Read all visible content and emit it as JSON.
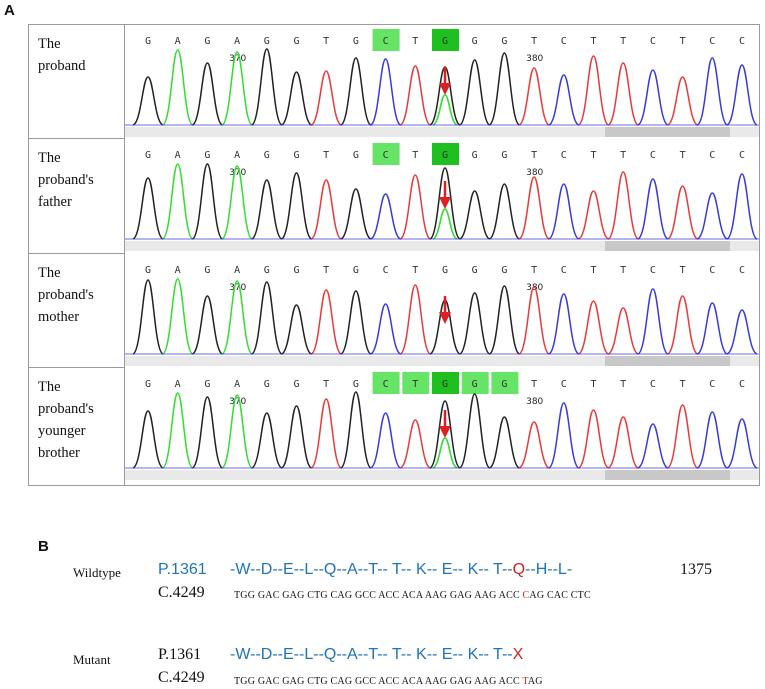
{
  "panel_a": {
    "label": "A",
    "rows": [
      {
        "label": "The\nproband",
        "bases": [
          "G",
          "A",
          "G",
          "A",
          "G",
          "G",
          "T",
          "G",
          "C",
          "T",
          "G",
          "G",
          "G",
          "T",
          "C",
          "T",
          "T",
          "C",
          "T",
          "C",
          "C"
        ],
        "highlight": [
          8,
          10
        ],
        "dark_highlight": [
          10
        ],
        "marker_370": "370",
        "marker_380": "380",
        "arrow_pos": 10,
        "het_green": true
      },
      {
        "label": "The\nproband's\nfather",
        "bases": [
          "G",
          "A",
          "G",
          "A",
          "G",
          "G",
          "T",
          "G",
          "C",
          "T",
          "G",
          "G",
          "G",
          "T",
          "C",
          "T",
          "T",
          "C",
          "T",
          "C",
          "C"
        ],
        "highlight": [
          8,
          10
        ],
        "dark_highlight": [
          10
        ],
        "marker_370": "370",
        "marker_380": "380",
        "arrow_pos": 10,
        "het_green": true
      },
      {
        "label": "The\nproband's\nmother",
        "bases": [
          "G",
          "A",
          "G",
          "A",
          "G",
          "G",
          "T",
          "G",
          "C",
          "T",
          "G",
          "G",
          "G",
          "T",
          "C",
          "T",
          "T",
          "C",
          "T",
          "C",
          "C"
        ],
        "highlight": [],
        "dark_highlight": [],
        "marker_370": "370",
        "marker_380": "380",
        "arrow_pos": 10,
        "het_green": false
      },
      {
        "label": "The\nproband's\nyounger\nbrother",
        "bases": [
          "G",
          "A",
          "G",
          "A",
          "G",
          "G",
          "T",
          "G",
          "C",
          "T",
          "G",
          "G",
          "G",
          "T",
          "C",
          "T",
          "T",
          "C",
          "T",
          "C",
          "C"
        ],
        "highlight": [
          8,
          9,
          10,
          11,
          12
        ],
        "dark_highlight": [
          10
        ],
        "marker_370": "370",
        "marker_380": "380",
        "arrow_pos": 10,
        "het_green": true
      }
    ],
    "colors": {
      "A": "#33dd33",
      "G": "#222222",
      "C": "#3a3ad8",
      "T": "#e83a3a",
      "highlight": "#66e466",
      "dark_highlight": "#1fbf1f",
      "arrow": "#e02020"
    }
  },
  "panel_b": {
    "label": "B",
    "wildtype": {
      "label": "Wildtype",
      "protein_start": "P.1361",
      "aa_normal": "-W--D--E--L--Q--A--T-- T-- K-- E-- K-- T--",
      "aa_mut": "Q",
      "aa_tail": "--H--L-",
      "protein_end": "1375",
      "cdna_start": "C.4249",
      "codons_before": "TGG GAC GAG CTG CAG GCC ACC ACA AAG GAG AAG ACC ",
      "codon_mut_base": "C",
      "codons_after": "AG CAC CTC"
    },
    "mutant": {
      "label": "Mutant",
      "protein_start": "P.1361",
      "aa_normal": "-W--D--E--L--Q--A--T-- T-- K-- E-- K-- T--",
      "aa_mut": "X",
      "cdna_start": "C.4249",
      "codons_before": "TGG GAC GAG CTG CAG GCC ACC ACA AAG GAG AAG ACC ",
      "codon_mut_base": "T",
      "codons_after": "AG"
    }
  }
}
